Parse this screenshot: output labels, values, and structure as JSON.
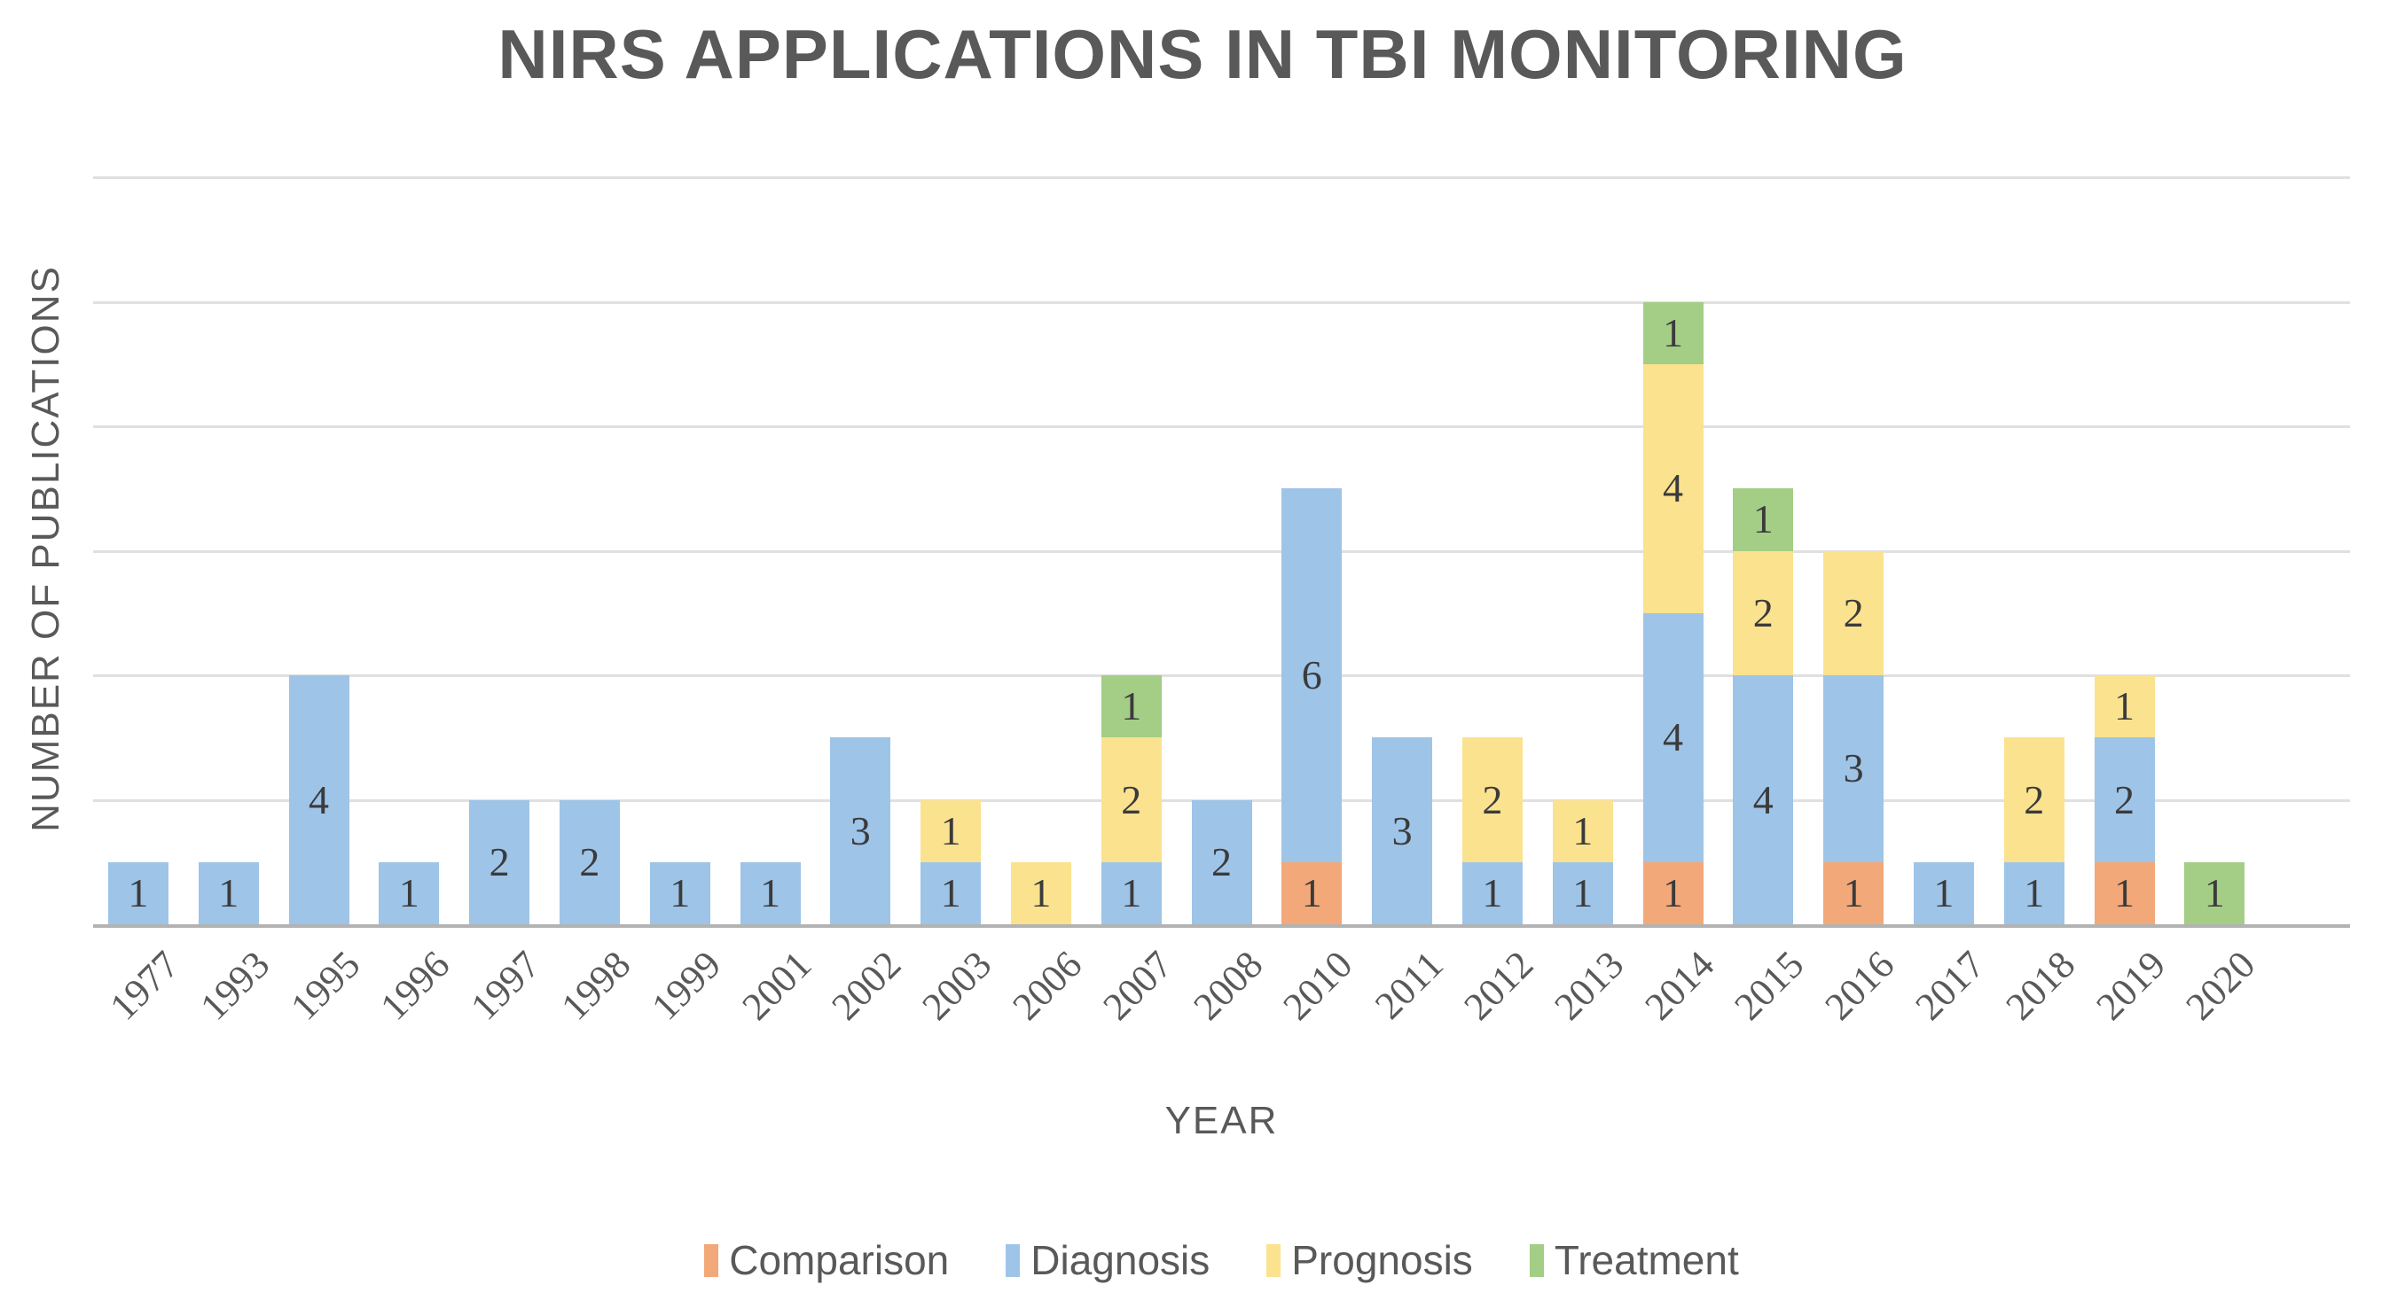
{
  "chart_data": {
    "type": "bar",
    "stacked": true,
    "title": "NIRS APPLICATIONS IN TBI MONITORING",
    "xlabel": "YEAR",
    "ylabel": "NUMBER OF PUBLICATIONS",
    "ylim": [
      0,
      12
    ],
    "grid_step": 2,
    "grid": "horizontal-only",
    "y_tick_labels_shown": false,
    "legend_position": "bottom",
    "segment_data_labels_shown": true,
    "categories": [
      "1977",
      "1993",
      "1995",
      "1996",
      "1997",
      "1998",
      "1999",
      "2001",
      "2002",
      "2003",
      "2006",
      "2007",
      "2008",
      "2010",
      "2011",
      "2012",
      "2013",
      "2014",
      "2015",
      "2016",
      "2017",
      "2018",
      "2019",
      "2020"
    ],
    "series": [
      {
        "name": "Comparison",
        "color": "#F2A878",
        "values": [
          0,
          0,
          0,
          0,
          0,
          0,
          0,
          0,
          0,
          0,
          0,
          0,
          0,
          1,
          0,
          0,
          0,
          1,
          0,
          1,
          0,
          0,
          1,
          0
        ]
      },
      {
        "name": "Diagnosis",
        "color": "#9EC4E8",
        "values": [
          1,
          1,
          4,
          1,
          2,
          2,
          1,
          1,
          3,
          1,
          0,
          1,
          2,
          6,
          3,
          1,
          1,
          4,
          4,
          3,
          1,
          1,
          2,
          0
        ]
      },
      {
        "name": "Prognosis",
        "color": "#FBE28F",
        "values": [
          0,
          0,
          0,
          0,
          0,
          0,
          0,
          0,
          0,
          1,
          1,
          2,
          0,
          0,
          0,
          2,
          1,
          4,
          2,
          2,
          0,
          2,
          1,
          0
        ]
      },
      {
        "name": "Treatment",
        "color": "#A4CD86",
        "values": [
          0,
          0,
          0,
          0,
          0,
          0,
          0,
          0,
          0,
          0,
          0,
          1,
          0,
          0,
          0,
          0,
          0,
          1,
          1,
          0,
          0,
          0,
          0,
          1
        ]
      }
    ]
  },
  "colors": {
    "background": "#FFFFFF",
    "gridline": "#E0E0E0",
    "axis_line": "#B3B3B3",
    "title_text": "#595959",
    "axis_text": "#595959",
    "data_label_text": "#3B3B3B"
  }
}
